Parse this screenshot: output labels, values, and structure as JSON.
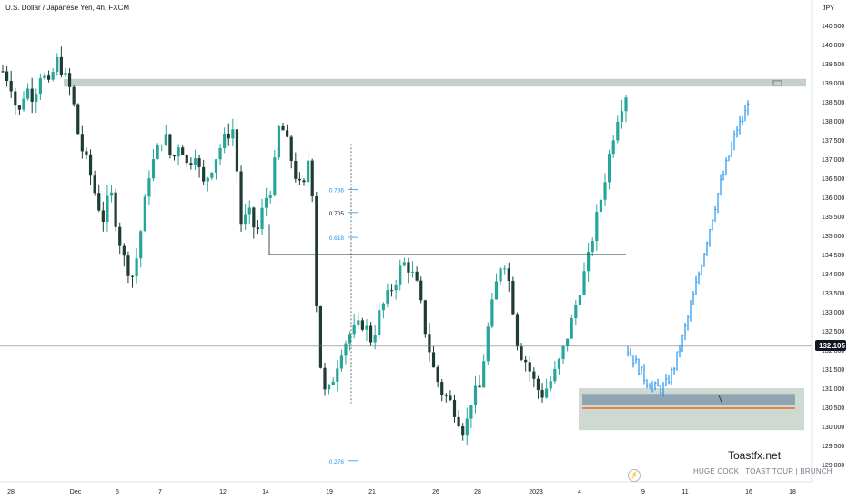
{
  "header": {
    "title": "U.S. Dollar / Japanese Yen, 4h, FXCM"
  },
  "branding": {
    "site": "Toastfx.net",
    "tags": "HUGE COCK  |  TOAST TOUR  |  BRUNCH"
  },
  "colors": {
    "up": "#26a69a",
    "down": "#1e3c34",
    "projection": "#2196f3",
    "zone": "#a5b9ab",
    "orderblock": "#5b7a99",
    "orange": "#e7824b"
  },
  "chart_data": {
    "type": "candlestick",
    "symbol": "USDJPY",
    "interval": "4h",
    "axis_unit": "JPY",
    "ylim": [
      128.9,
      140.9
    ],
    "y_ticks": [
      "140.500",
      "140.000",
      "139.500",
      "139.000",
      "138.500",
      "138.000",
      "137.500",
      "137.000",
      "136.500",
      "136.000",
      "135.500",
      "135.000",
      "134.500",
      "134.000",
      "133.500",
      "133.000",
      "132.500",
      "132.000",
      "131.500",
      "131.000",
      "130.500",
      "130.000",
      "129.500",
      "129.000"
    ],
    "x_ticks": [
      "28",
      "Dec",
      "5",
      "7",
      "12",
      "14",
      "19",
      "21",
      "26",
      "28",
      "2023",
      "4",
      "9",
      "11",
      "16",
      "18"
    ],
    "last_price": "132.105",
    "fib_levels": [
      {
        "label": "0.786",
        "value": 136.2
      },
      {
        "label": "0.705",
        "value": 135.6
      },
      {
        "label": "0.618",
        "value": 134.95
      },
      {
        "label": "-0.276",
        "value": 129.1
      }
    ],
    "price_path": [
      139.3,
      139.0,
      138.1,
      138.9,
      138.6,
      139.3,
      138.9,
      139.6,
      139.2,
      138.7,
      137.4,
      136.9,
      136.1,
      135.4,
      136.2,
      135.0,
      134.2,
      133.9,
      135.2,
      136.6,
      137.2,
      137.7,
      136.9,
      137.5,
      136.8,
      137.2,
      136.3,
      136.7,
      137.2,
      137.6,
      137.8,
      135.3,
      135.6,
      135.0,
      135.9,
      136.3,
      138.0,
      137.4,
      136.6,
      136.1,
      137.4,
      132.0,
      130.7,
      131.3,
      132.0,
      132.4,
      132.6,
      132.7,
      132.2,
      133.0,
      133.4,
      133.8,
      134.3,
      134.1,
      133.6,
      132.4,
      131.5,
      130.9,
      130.7,
      130.3,
      129.8,
      130.8,
      131.0,
      132.5,
      133.6,
      134.5,
      133.6,
      132.0,
      131.7,
      131.2,
      130.8,
      131.1,
      131.5,
      132.1,
      132.8,
      133.6,
      134.3,
      135.3,
      136.2,
      137.3,
      138.2,
      138.7
    ]
  }
}
